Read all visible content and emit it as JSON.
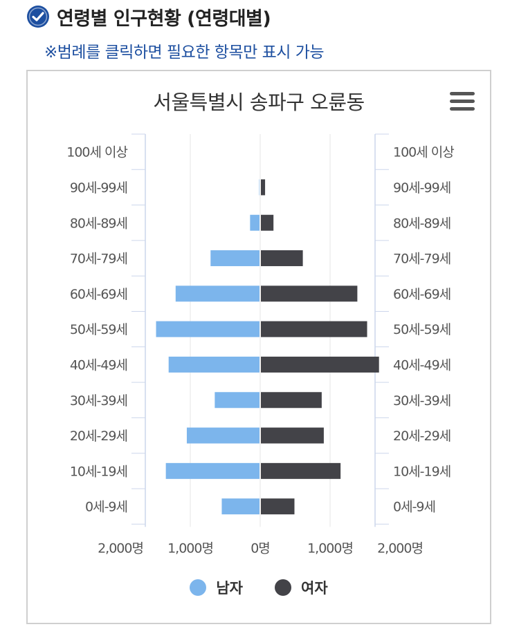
{
  "header": {
    "title": "연령별 인구현황 (연령대별)"
  },
  "note": "※범례를 클릭하면 필요한 항목만 표시 가능",
  "colors": {
    "male": "#7cb5ec",
    "female": "#434348",
    "accent": "#1d4fa0"
  },
  "chart_data": {
    "type": "bar",
    "orientation": "horizontal",
    "title": "서울특별시 송파구 오륜동",
    "categories": [
      "100세 이상",
      "90세-99세",
      "80세-89세",
      "70세-79세",
      "60세-69세",
      "50세-59세",
      "40세-49세",
      "30세-39세",
      "20세-29세",
      "10세-19세",
      "0세-9세"
    ],
    "series": [
      {
        "name": "남자",
        "color": "#7cb5ec",
        "values": [
          2,
          15,
          145,
          710,
          1210,
          1490,
          1310,
          650,
          1050,
          1350,
          550
        ]
      },
      {
        "name": "여자",
        "color": "#434348",
        "values": [
          3,
          70,
          190,
          610,
          1390,
          1530,
          1700,
          880,
          910,
          1150,
          490
        ]
      }
    ],
    "xlim": [
      -2000,
      2000
    ],
    "xticks": [
      {
        "value": -2000,
        "label": "2,000명"
      },
      {
        "value": -1000,
        "label": "1,000명"
      },
      {
        "value": 0,
        "label": "0명"
      },
      {
        "value": 1000,
        "label": "1,000명"
      },
      {
        "value": 2000,
        "label": "2,000명"
      }
    ],
    "grid": true,
    "legend": "bottom"
  }
}
